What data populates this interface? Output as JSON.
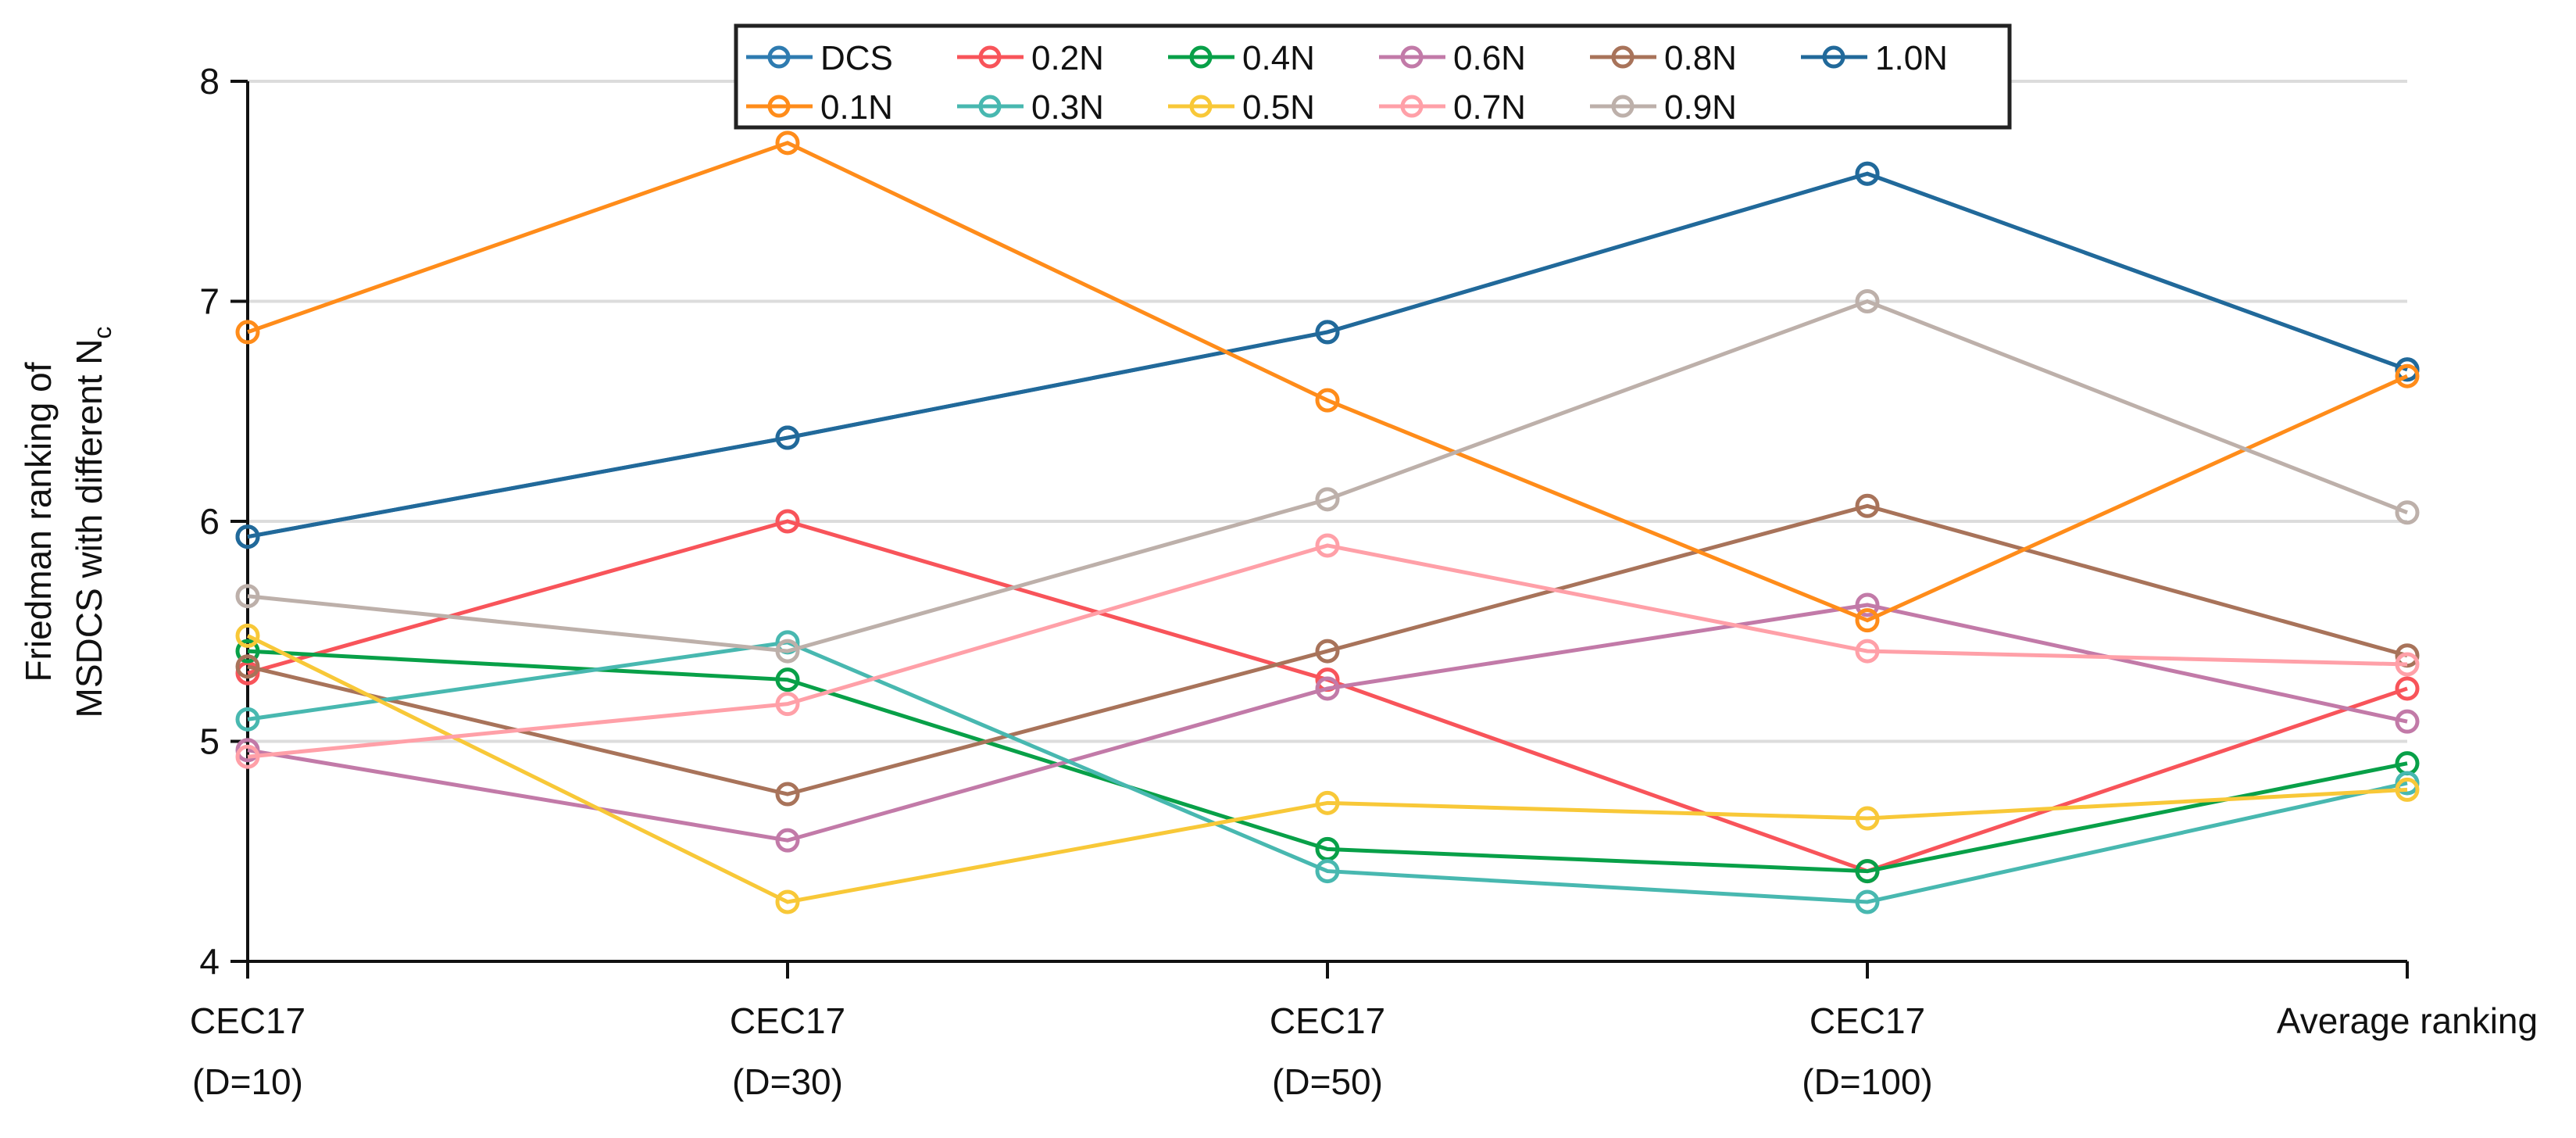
{
  "chart_data": {
    "type": "line",
    "title": "",
    "xlabel": "",
    "ylabel_line1": "Friedman ranking of",
    "ylabel_line2": "MSDCS with different N",
    "ylabel_sub": "c",
    "ylim": [
      4,
      8
    ],
    "yticks": [
      "4",
      "5",
      "6",
      "7",
      "8"
    ],
    "grid": "horizontal",
    "legend_position": "top-center",
    "categories": [
      {
        "line1": "CEC17",
        "line2": "(D=10)"
      },
      {
        "line1": "CEC17",
        "line2": "(D=30)"
      },
      {
        "line1": "CEC17",
        "line2": "(D=50)"
      },
      {
        "line1": "CEC17",
        "line2": "(D=100)"
      },
      {
        "line1": "Average ranking",
        "line2": ""
      }
    ],
    "series": [
      {
        "name": "DCS",
        "color": "#2e7bb0",
        "values": [
          5.93,
          6.38,
          6.86,
          7.58,
          6.69
        ]
      },
      {
        "name": "0.2N",
        "color": "#f8545a",
        "values": [
          5.31,
          6.0,
          5.28,
          4.41,
          5.24
        ]
      },
      {
        "name": "0.4N",
        "color": "#08a048",
        "values": [
          5.41,
          5.28,
          4.51,
          4.41,
          4.9
        ]
      },
      {
        "name": "0.6N",
        "color": "#c27aa8",
        "values": [
          4.96,
          4.55,
          5.24,
          5.62,
          5.09
        ]
      },
      {
        "name": "0.8N",
        "color": "#a8735a",
        "values": [
          5.34,
          4.76,
          5.41,
          6.07,
          5.39
        ]
      },
      {
        "name": "1.0N",
        "color": "#21699a",
        "values": [
          5.93,
          6.38,
          6.86,
          7.58,
          6.69
        ]
      },
      {
        "name": "0.1N",
        "color": "#ff8c1a",
        "values": [
          6.86,
          7.72,
          6.55,
          5.55,
          6.66
        ]
      },
      {
        "name": "0.3N",
        "color": "#48b8b0",
        "values": [
          5.1,
          5.45,
          4.41,
          4.27,
          4.81
        ]
      },
      {
        "name": "0.5N",
        "color": "#f8c838",
        "values": [
          5.48,
          4.27,
          4.72,
          4.65,
          4.78
        ]
      },
      {
        "name": "0.7N",
        "color": "#ffa0a8",
        "values": [
          4.93,
          5.17,
          5.89,
          5.41,
          5.35
        ]
      },
      {
        "name": "0.9N",
        "color": "#bdb0aa",
        "values": [
          5.66,
          5.41,
          6.1,
          7.0,
          6.04
        ]
      }
    ]
  }
}
